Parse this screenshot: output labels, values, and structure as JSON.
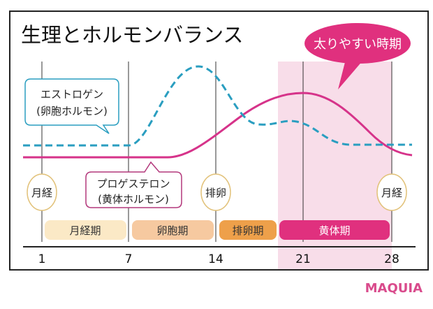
{
  "title": "生理とホルモンバランス",
  "highlight_bubble": "太りやすい時期",
  "estrogen_label": {
    "line1": "エストロゲン",
    "line2": "(卵胞ホルモン)"
  },
  "progesterone_label": {
    "line1": "プロゲステロン",
    "line2": "(黄体ホルモン)"
  },
  "events": [
    "月経",
    "排卵",
    "月経"
  ],
  "phases": [
    "月経期",
    "卵胞期",
    "排卵期",
    "黄体期"
  ],
  "day_ticks": [
    "1",
    "7",
    "14",
    "21",
    "28"
  ],
  "brand": "MAQUIA",
  "colors": {
    "estrogen": "#2a9ec0",
    "progesterone": "#d6338a",
    "highlight": "#e0307e",
    "shade": "#f8dde9",
    "menstrual": "#fbe9c6",
    "follicular": "#f6c9a0",
    "ovulation": "#eea04a",
    "luteal": "#e0307e",
    "brand": "#d94b8c"
  }
}
